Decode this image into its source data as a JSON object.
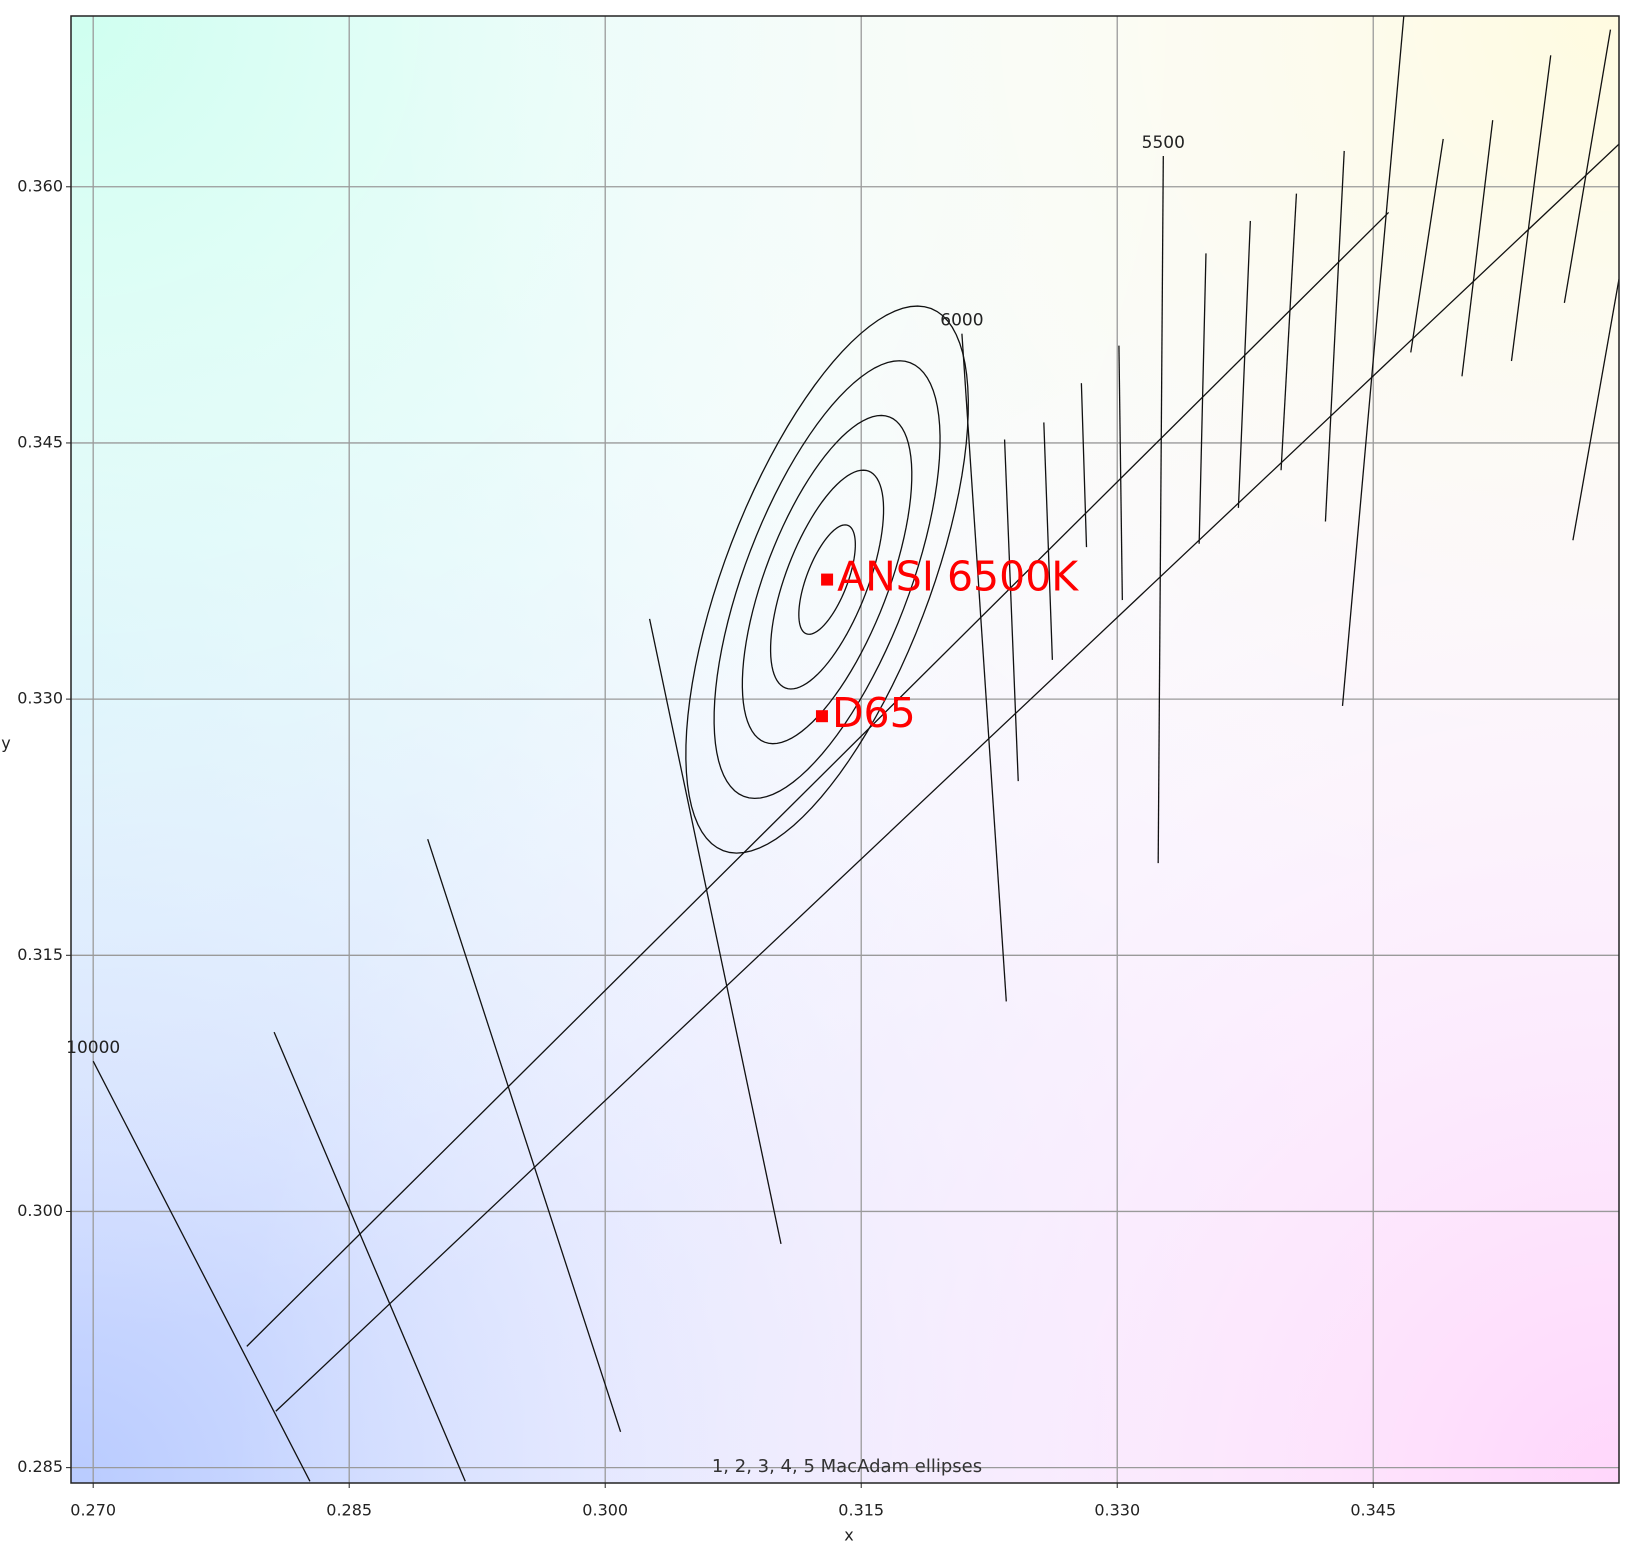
{
  "chart_data": {
    "type": "scatter",
    "xlabel": "x",
    "ylabel": "y",
    "xlim": [
      0.2687,
      0.3594
    ],
    "ylim": [
      0.2841,
      0.37
    ],
    "xticks": [
      {
        "value": 0.27,
        "label": "0.270"
      },
      0.285,
      {
        "value": 0.3,
        "label": "0.300"
      },
      0.315,
      {
        "value": 0.33,
        "label": "0.330"
      },
      0.345
    ],
    "yticks": [
      0.285,
      {
        "value": 0.3,
        "label": "0.300"
      },
      0.315,
      {
        "value": 0.33,
        "label": "0.330"
      },
      0.345,
      {
        "value": 0.36,
        "label": "0.360"
      }
    ],
    "grid": true,
    "points": [
      {
        "name": "ANSI 6500K",
        "x": 0.313,
        "y": 0.337,
        "color": "#ff0000"
      },
      {
        "name": "D65",
        "x": 0.3127,
        "y": 0.329,
        "color": "#ff0000"
      }
    ],
    "loci": [
      {
        "x": [
          0.279,
          0.3459
        ],
        "y": [
          0.2921,
          0.3585
        ]
      },
      {
        "x": [
          0.2807,
          0.3594
        ],
        "y": [
          0.2883,
          0.3625
        ]
      }
    ],
    "isotemperature_lines": [
      {
        "label": "10000",
        "x": [
          0.27,
          0.2827
        ],
        "y": [
          0.3088,
          0.2842
        ]
      },
      {
        "x": [
          0.2806,
          0.2918
        ],
        "y": [
          0.3105,
          0.2842
        ]
      },
      {
        "x": [
          0.2896,
          0.3009
        ],
        "y": [
          0.3218,
          0.2871
        ]
      },
      {
        "x": [
          0.3026,
          0.3103
        ],
        "y": [
          0.3347,
          0.2981
        ]
      },
      {
        "label": "6000",
        "x": [
          0.3209,
          0.3235
        ],
        "y": [
          0.3514,
          0.3123
        ]
      },
      {
        "x": [
          0.3234,
          0.3242
        ],
        "y": [
          0.3452,
          0.3252
        ]
      },
      {
        "x": [
          0.3257,
          0.3262
        ],
        "y": [
          0.3462,
          0.3323
        ]
      },
      {
        "x": [
          0.3279,
          0.3282
        ],
        "y": [
          0.3485,
          0.3389
        ]
      },
      {
        "x": [
          0.3301,
          0.3303
        ],
        "y": [
          0.3507,
          0.3358
        ]
      },
      {
        "label": "5500",
        "x": [
          0.3327,
          0.3324
        ],
        "y": [
          0.3618,
          0.3204
        ]
      },
      {
        "x": [
          0.3352,
          0.3348
        ],
        "y": [
          0.3561,
          0.3391
        ]
      },
      {
        "x": [
          0.3378,
          0.3371
        ],
        "y": [
          0.358,
          0.3412
        ]
      },
      {
        "x": [
          0.3405,
          0.3396
        ],
        "y": [
          0.3596,
          0.3434
        ]
      },
      {
        "x": [
          0.3433,
          0.3422
        ],
        "y": [
          0.3621,
          0.3404
        ]
      },
      {
        "x": [
          0.3468,
          0.3432
        ],
        "y": [
          0.3701,
          0.3296
        ]
      },
      {
        "x": [
          0.3491,
          0.3472
        ],
        "y": [
          0.3628,
          0.3503
        ]
      },
      {
        "x": [
          0.352,
          0.3502
        ],
        "y": [
          0.3639,
          0.3489
        ]
      },
      {
        "x": [
          0.3554,
          0.3531
        ],
        "y": [
          0.3677,
          0.3498
        ]
      },
      {
        "x": [
          0.3589,
          0.3562
        ],
        "y": [
          0.3692,
          0.3532
        ]
      },
      {
        "x": [
          0.3594,
          0.3567
        ],
        "y": [
          0.3546,
          0.3393
        ]
      }
    ],
    "ellipses": {
      "center_x": 0.313,
      "center_y": 0.337,
      "semi_major": 0.0034,
      "semi_minor": 0.0012,
      "angle": 69,
      "steps": [
        1,
        2,
        3,
        4,
        5
      ],
      "label": "1, 2, 3, 4, 5  MacAdam ellipses"
    }
  }
}
